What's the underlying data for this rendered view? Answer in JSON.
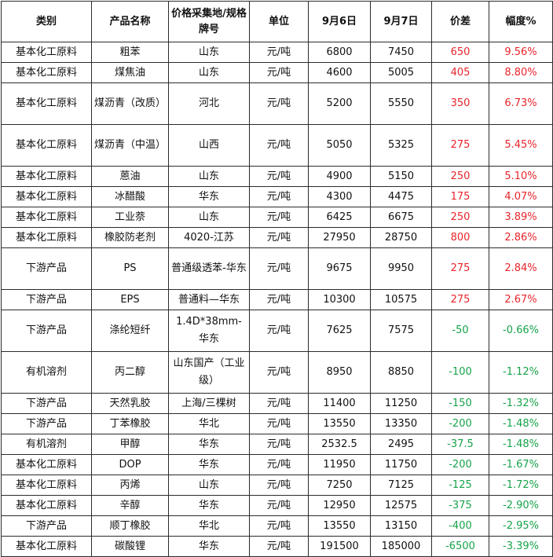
{
  "headers": [
    "类别",
    "产品名称",
    "价格采集地/规格牌号",
    "单位",
    "9月6日",
    "9月7日",
    "价差",
    "幅度%"
  ],
  "rows": [
    {
      "category": "基本化工原料",
      "product": "粗苯",
      "location": "山东",
      "unit": "元/吨",
      "sep6": "6800",
      "sep7": "7450",
      "diff": "650",
      "pct": "9.56%",
      "trend": "up",
      "height": "r1"
    },
    {
      "category": "基本化工原料",
      "product": "煤焦油",
      "location": "山东",
      "unit": "元/吨",
      "sep6": "4600",
      "sep7": "5005",
      "diff": "405",
      "pct": "8.80%",
      "trend": "up",
      "height": "r1"
    },
    {
      "category": "基本化工原料",
      "product": "煤沥青（改质）",
      "location": "河北",
      "unit": "元/吨",
      "sep6": "5200",
      "sep7": "5550",
      "diff": "350",
      "pct": "6.73%",
      "trend": "up",
      "height": "r2"
    },
    {
      "category": "基本化工原料",
      "product": "煤沥青（中温）",
      "location": "山西",
      "unit": "元/吨",
      "sep6": "5050",
      "sep7": "5325",
      "diff": "275",
      "pct": "5.45%",
      "trend": "up",
      "height": "r2"
    },
    {
      "category": "基本化工原料",
      "product": "蒽油",
      "location": "山东",
      "unit": "元/吨",
      "sep6": "4900",
      "sep7": "5150",
      "diff": "250",
      "pct": "5.10%",
      "trend": "up",
      "height": "r1"
    },
    {
      "category": "基本化工原料",
      "product": "冰醋酸",
      "location": "华东",
      "unit": "元/吨",
      "sep6": "4300",
      "sep7": "4475",
      "diff": "175",
      "pct": "4.07%",
      "trend": "up",
      "height": "r1"
    },
    {
      "category": "基本化工原料",
      "product": "工业萘",
      "location": "山东",
      "unit": "元/吨",
      "sep6": "6425",
      "sep7": "6675",
      "diff": "250",
      "pct": "3.89%",
      "trend": "up",
      "height": "r1"
    },
    {
      "category": "基本化工原料",
      "product": "橡胶防老剂",
      "location": "4020-江苏",
      "unit": "元/吨",
      "sep6": "27950",
      "sep7": "28750",
      "diff": "800",
      "pct": "2.86%",
      "trend": "up",
      "height": "r1"
    },
    {
      "category": "下游产品",
      "product": "PS",
      "location": "普通级透苯-华东",
      "unit": "元/吨",
      "sep6": "9675",
      "sep7": "9950",
      "diff": "275",
      "pct": "2.84%",
      "trend": "up",
      "height": "r2"
    },
    {
      "category": "下游产品",
      "product": "EPS",
      "location": "普通料—华东",
      "unit": "元/吨",
      "sep6": "10300",
      "sep7": "10575",
      "diff": "275",
      "pct": "2.67%",
      "trend": "up",
      "height": "r1"
    },
    {
      "category": "下游产品",
      "product": "涤纶短纤",
      "location": "1.4D*38mm-华东",
      "unit": "元/吨",
      "sep6": "7625",
      "sep7": "7575",
      "diff": "-50",
      "pct": "-0.66%",
      "trend": "down",
      "height": "r2"
    },
    {
      "category": "有机溶剂",
      "product": "丙二醇",
      "location": "山东国产（工业级）",
      "unit": "元/吨",
      "sep6": "8950",
      "sep7": "8850",
      "diff": "-100",
      "pct": "-1.12%",
      "trend": "down",
      "height": "r2"
    },
    {
      "category": "下游产品",
      "product": "天然乳胶",
      "location": "上海/三棵树",
      "unit": "元/吨",
      "sep6": "11400",
      "sep7": "11250",
      "diff": "-150",
      "pct": "-1.32%",
      "trend": "down",
      "height": "r1"
    },
    {
      "category": "下游产品",
      "product": "丁苯橡胶",
      "location": "华北",
      "unit": "元/吨",
      "sep6": "13550",
      "sep7": "13350",
      "diff": "-200",
      "pct": "-1.48%",
      "trend": "down",
      "height": "r1"
    },
    {
      "category": "有机溶剂",
      "product": "甲醇",
      "location": "华东",
      "unit": "元/吨",
      "sep6": "2532.5",
      "sep7": "2495",
      "diff": "-37.5",
      "pct": "-1.48%",
      "trend": "down",
      "height": "r1"
    },
    {
      "category": "基本化工原料",
      "product": "DOP",
      "location": "华东",
      "unit": "元/吨",
      "sep6": "11950",
      "sep7": "11750",
      "diff": "-200",
      "pct": "-1.67%",
      "trend": "down",
      "height": "r1"
    },
    {
      "category": "基本化工原料",
      "product": "丙烯",
      "location": "山东",
      "unit": "元/吨",
      "sep6": "7250",
      "sep7": "7125",
      "diff": "-125",
      "pct": "-1.72%",
      "trend": "down",
      "height": "r1"
    },
    {
      "category": "基本化工原料",
      "product": "辛醇",
      "location": "华东",
      "unit": "元/吨",
      "sep6": "12950",
      "sep7": "12575",
      "diff": "-375",
      "pct": "-2.90%",
      "trend": "down",
      "height": "r1"
    },
    {
      "category": "下游产品",
      "product": "顺丁橡胶",
      "location": "华北",
      "unit": "元/吨",
      "sep6": "13550",
      "sep7": "13150",
      "diff": "-400",
      "pct": "-2.95%",
      "trend": "down",
      "height": "r1"
    },
    {
      "category": "基本化工原料",
      "product": "碳酸锂",
      "location": "华东",
      "unit": "元/吨",
      "sep6": "191500",
      "sep7": "185000",
      "diff": "-6500",
      "pct": "-3.39%",
      "trend": "down",
      "height": "r1"
    }
  ],
  "colors": {
    "up": "#e8242a",
    "down": "#17a34a",
    "border": "#2b2b2b"
  }
}
